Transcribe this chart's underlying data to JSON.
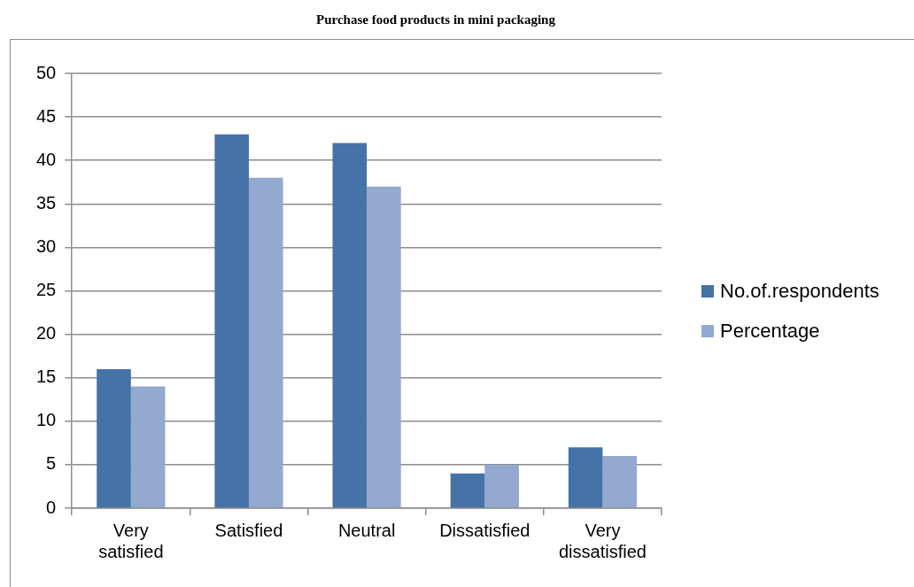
{
  "chart_data": {
    "type": "bar",
    "title": "Purchase food products in mini packaging",
    "categories": [
      "Very satisfied",
      "Satisfied",
      "Neutral",
      "Dissatisfied",
      "Very dissatisfied"
    ],
    "series": [
      {
        "name": "No.of.respondents",
        "color": "#4572a7",
        "values": [
          16,
          43,
          42,
          4,
          7
        ]
      },
      {
        "name": "Percentage",
        "color": "#93a9cf",
        "values": [
          14,
          38,
          37,
          5,
          6
        ]
      }
    ],
    "ylim": [
      0,
      50
    ],
    "yticks": [
      0,
      5,
      10,
      15,
      20,
      25,
      30,
      35,
      40,
      45,
      50
    ],
    "grid": "y",
    "legend": "right"
  }
}
